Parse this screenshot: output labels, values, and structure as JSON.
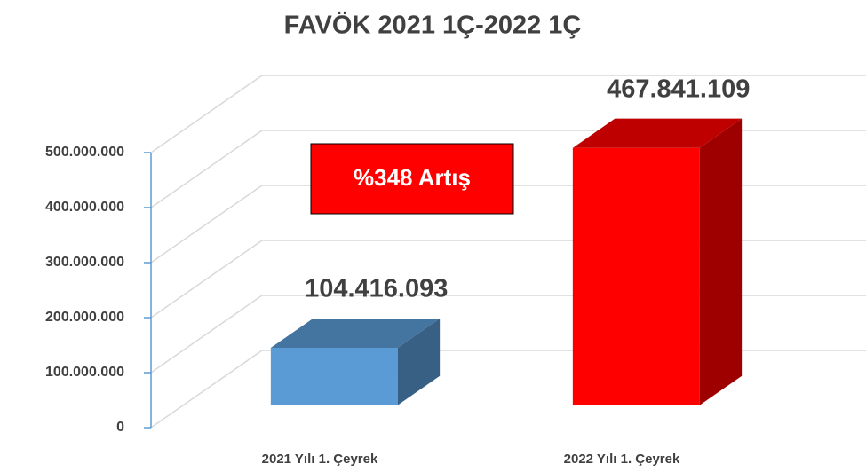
{
  "chart_data": {
    "type": "bar3d",
    "title": "FAVÖK 2021 1Ç-2022 1Ç",
    "categories": [
      "2021 Yılı 1. Çeyrek",
      "2022 Yılı 1. Çeyrek"
    ],
    "values": [
      104416093,
      467841109
    ],
    "value_labels": [
      "104.416.093",
      "467.841.109"
    ],
    "colors": [
      "#5b9bd5",
      "#ff0000"
    ],
    "annotation": "%348 Artış",
    "ylim": [
      0,
      500000000
    ],
    "yticks": [
      0,
      {
        "value": 100000000,
        "label": "100.000.000"
      },
      {
        "value": 200000000,
        "label": "200.000.000"
      },
      {
        "value": 300000000,
        "label": "300.000.000"
      },
      {
        "value": 400000000,
        "label": "400.000.000"
      },
      {
        "value": 500000000,
        "label": "500.000.000"
      }
    ],
    "grid": true
  }
}
